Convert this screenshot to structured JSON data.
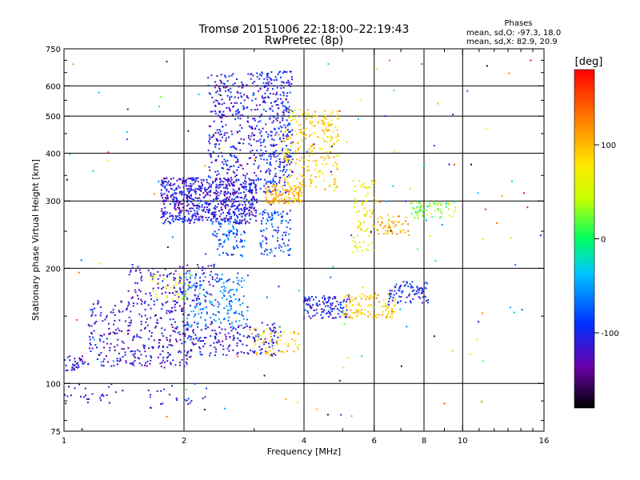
{
  "chart_data": {
    "type": "scatter",
    "title": "Tromsø 20151006 22:18:00–22:19:43",
    "subtitle": "RwPretec (8p)",
    "xlabel": "Frequency [MHz]",
    "ylabel": "Stationary phase Virtual Height [km]",
    "x_scale": "log",
    "y_scale": "log",
    "xlim": [
      1,
      16
    ],
    "ylim": [
      75,
      750
    ],
    "x_ticks": [
      1,
      2,
      4,
      6,
      8,
      10,
      16
    ],
    "x_tick_labels": [
      "1",
      "2",
      "4",
      "6",
      "8",
      "10",
      "16"
    ],
    "x_grid": [
      2,
      4,
      6,
      8,
      10
    ],
    "y_ticks": [
      75,
      100,
      200,
      300,
      400,
      500,
      600,
      750
    ],
    "y_tick_labels": [
      "75",
      "100",
      "200",
      "300",
      "400",
      "500",
      "600",
      "750"
    ],
    "y_grid": [
      100,
      200,
      300,
      400,
      500,
      600
    ],
    "grid": true,
    "legend": {
      "title": "Phases",
      "lines": [
        "mean, sd,O: -97.3, 18.0",
        "mean, sd,X:  82.9, 20.9"
      ],
      "placement": "top-right"
    },
    "colorbar": {
      "label": "[deg]",
      "range": [
        -180,
        180
      ],
      "ticks": [
        100,
        0,
        -100
      ],
      "tick_labels": [
        "100",
        "0",
        "-100"
      ],
      "colormap": [
        "#000000",
        "#6a00a8",
        "#0030ff",
        "#00c8ff",
        "#00ff60",
        "#c8ff00",
        "#ffe800",
        "#ff8000",
        "#ff0000"
      ]
    },
    "series_clusters": [
      {
        "fx": [
          1.75,
          3.05
        ],
        "h": [
          262,
          345
        ],
        "phase": -110,
        "n": 700
      },
      {
        "fx": [
          2.3,
          3.1
        ],
        "h": [
          335,
          650
        ],
        "phase": -108,
        "n": 320
      },
      {
        "fx": [
          3.1,
          3.75
        ],
        "h": [
          315,
          660
        ],
        "phase": -100,
        "n": 330
      },
      {
        "fx": [
          2.35,
          2.85
        ],
        "h": [
          215,
          280
        ],
        "phase": -75,
        "n": 90
      },
      {
        "fx": [
          3.1,
          3.7
        ],
        "h": [
          215,
          285
        ],
        "phase": -85,
        "n": 100
      },
      {
        "fx": [
          3.2,
          3.95
        ],
        "h": [
          295,
          330
        ],
        "phase": 105,
        "n": 110
      },
      {
        "fx": [
          3.55,
          4.9
        ],
        "h": [
          320,
          520
        ],
        "phase": 90,
        "n": 240
      },
      {
        "fx": [
          5.3,
          6.1
        ],
        "h": [
          220,
          340
        ],
        "phase": 70,
        "n": 80
      },
      {
        "fx": [
          6.1,
          7.4
        ],
        "h": [
          245,
          275
        ],
        "phase": 105,
        "n": 50
      },
      {
        "fx": [
          7.4,
          9.6
        ],
        "h": [
          270,
          300
        ],
        "phase": 25,
        "n": 70
      },
      {
        "fx": [
          1.0,
          1.15
        ],
        "h": [
          108,
          118
        ],
        "phase": -110,
        "n": 35
      },
      {
        "fx": [
          1.15,
          2.1
        ],
        "h": [
          110,
          165
        ],
        "phase": -115,
        "n": 320
      },
      {
        "fx": [
          1.45,
          2.4
        ],
        "h": [
          160,
          205
        ],
        "phase": -115,
        "n": 140
      },
      {
        "fx": [
          2.0,
          3.5
        ],
        "h": [
          118,
          145
        ],
        "phase": -110,
        "n": 180
      },
      {
        "fx": [
          2.0,
          2.9
        ],
        "h": [
          140,
          195
        ],
        "phase": -65,
        "n": 170
      },
      {
        "fx": [
          1.65,
          2.1
        ],
        "h": [
          165,
          195
        ],
        "phase": 60,
        "n": 30
      },
      {
        "fx": [
          2.9,
          3.9
        ],
        "h": [
          118,
          140
        ],
        "phase": 90,
        "n": 60
      },
      {
        "fx": [
          3.95,
          5.2
        ],
        "h": [
          148,
          170
        ],
        "phase": -105,
        "n": 120
      },
      {
        "fx": [
          5.0,
          6.8
        ],
        "h": [
          148,
          172
        ],
        "phase": 95,
        "n": 110
      },
      {
        "fx": [
          6.5,
          8.2
        ],
        "h": [
          160,
          185
        ],
        "phase": -100,
        "n": 80
      },
      {
        "fx": [
          1.0,
          1.35
        ],
        "h": [
          88,
          100
        ],
        "phase": -120,
        "n": 25
      },
      {
        "fx": [
          1.6,
          2.3
        ],
        "h": [
          85,
          100
        ],
        "phase": -100,
        "n": 25
      },
      {
        "fx": [
          1.0,
          16.0
        ],
        "h": [
          75,
          700
        ],
        "phase": 0,
        "n": 150
      }
    ]
  }
}
